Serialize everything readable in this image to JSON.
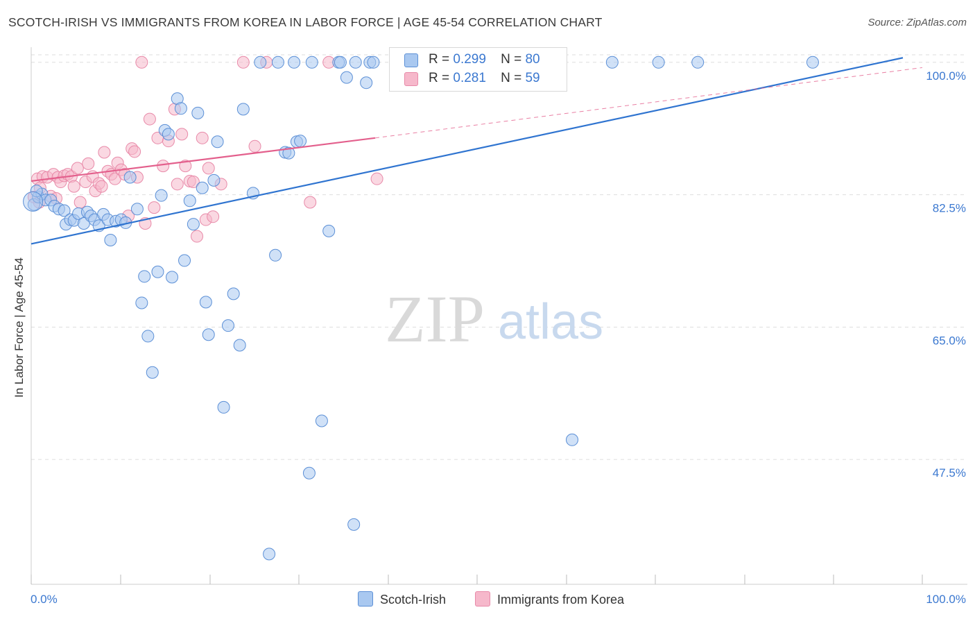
{
  "title": "SCOTCH-IRISH VS IMMIGRANTS FROM KOREA IN LABOR FORCE | AGE 45-54 CORRELATION CHART",
  "source": "Source: ZipAtlas.com",
  "watermark": {
    "zip": "ZIP",
    "atlas": "atlas"
  },
  "colors": {
    "blue_fill": "#a9c8f0",
    "blue_stroke": "#5b8fd6",
    "blue_line": "#2f74d0",
    "pink_fill": "#f6b8cb",
    "pink_stroke": "#e889a8",
    "pink_line": "#e35f8c",
    "axis_label": "#3b78d0",
    "grid": "#dddddd"
  },
  "legend_top": [
    {
      "r_label": "R =",
      "r_value": "0.299",
      "n_label": "N =",
      "n_value": "80"
    },
    {
      "r_label": "R =",
      "r_value": "0.281",
      "n_label": "N =",
      "n_value": "59"
    }
  ],
  "chart_data": {
    "type": "scatter",
    "title": "SCOTCH-IRISH VS IMMIGRANTS FROM KOREA IN LABOR FORCE | AGE 45-54 CORRELATION CHART",
    "xlabel": "",
    "ylabel": "In Labor Force | Age 45-54",
    "xlim": [
      0,
      100
    ],
    "ylim": [
      31,
      102
    ],
    "x_tick_labels": [
      "0.0%",
      "100.0%"
    ],
    "y_ticks": [
      {
        "value": 100.0,
        "label": "100.0%"
      },
      {
        "value": 82.5,
        "label": "82.5%"
      },
      {
        "value": 65.0,
        "label": "65.0%"
      },
      {
        "value": 47.5,
        "label": "47.5%"
      }
    ],
    "series": [
      {
        "name": "Scotch-Irish",
        "color": "blue",
        "r": 0.299,
        "n": 80,
        "trend": {
          "x0": 0,
          "y0": 76.0,
          "x1": 100,
          "y1": 100.6
        },
        "points": [
          [
            0.3,
            81.2
          ],
          [
            0.8,
            82.2
          ],
          [
            1.2,
            82.6
          ],
          [
            1.6,
            81.8
          ],
          [
            2.2,
            81.8
          ],
          [
            2.6,
            81.0
          ],
          [
            3.1,
            80.6
          ],
          [
            3.7,
            80.4
          ],
          [
            3.9,
            78.6
          ],
          [
            4.4,
            79.2
          ],
          [
            4.8,
            79.1
          ],
          [
            5.3,
            80.0
          ],
          [
            5.9,
            78.7
          ],
          [
            6.3,
            80.2
          ],
          [
            6.7,
            79.7
          ],
          [
            7.1,
            79.2
          ],
          [
            7.6,
            78.4
          ],
          [
            8.1,
            79.9
          ],
          [
            8.6,
            79.2
          ],
          [
            8.9,
            76.5
          ],
          [
            9.5,
            79.0
          ],
          [
            10.1,
            79.2
          ],
          [
            10.6,
            78.8
          ],
          [
            11.1,
            84.8
          ],
          [
            11.9,
            80.6
          ],
          [
            12.4,
            68.2
          ],
          [
            12.7,
            71.7
          ],
          [
            13.1,
            63.8
          ],
          [
            13.6,
            59.0
          ],
          [
            14.2,
            72.3
          ],
          [
            14.6,
            82.4
          ],
          [
            15.0,
            91.0
          ],
          [
            15.4,
            90.5
          ],
          [
            15.8,
            71.6
          ],
          [
            16.4,
            95.2
          ],
          [
            16.8,
            93.9
          ],
          [
            17.2,
            73.8
          ],
          [
            17.8,
            81.7
          ],
          [
            18.2,
            78.6
          ],
          [
            18.7,
            93.3
          ],
          [
            19.2,
            83.4
          ],
          [
            19.6,
            68.3
          ],
          [
            19.9,
            64.0
          ],
          [
            20.5,
            84.4
          ],
          [
            20.9,
            89.5
          ],
          [
            21.6,
            54.4
          ],
          [
            22.1,
            65.2
          ],
          [
            22.7,
            69.4
          ],
          [
            23.4,
            62.6
          ],
          [
            23.8,
            93.8
          ],
          [
            24.9,
            82.7
          ],
          [
            25.7,
            100.0
          ],
          [
            26.7,
            35.0
          ],
          [
            27.4,
            74.5
          ],
          [
            27.7,
            100.0
          ],
          [
            28.5,
            88.1
          ],
          [
            28.9,
            88.0
          ],
          [
            29.5,
            100.0
          ],
          [
            29.8,
            89.5
          ],
          [
            30.2,
            89.6
          ],
          [
            31.2,
            45.7
          ],
          [
            31.5,
            100.0
          ],
          [
            32.6,
            52.6
          ],
          [
            33.4,
            77.7
          ],
          [
            34.5,
            100.0
          ],
          [
            34.7,
            100.0
          ],
          [
            35.4,
            98.0
          ],
          [
            36.2,
            38.9
          ],
          [
            36.4,
            100.0
          ],
          [
            37.6,
            97.3
          ],
          [
            38.0,
            100.0
          ],
          [
            38.4,
            100.0
          ],
          [
            42.5,
            100.0
          ],
          [
            49.4,
            100.0
          ],
          [
            60.7,
            50.1
          ],
          [
            65.2,
            100.0
          ],
          [
            70.4,
            100.0
          ],
          [
            74.8,
            100.0
          ],
          [
            87.7,
            100.0
          ],
          [
            0.6,
            83.0
          ]
        ]
      },
      {
        "name": "Immigrants from Korea",
        "color": "pink",
        "r": 0.281,
        "n": 59,
        "trend": {
          "x0": 0,
          "y0": 84.3,
          "x1": 38.6,
          "y1": 90.0
        },
        "trend_dash": {
          "x0": 38.6,
          "y0": 90.0,
          "x1": 100,
          "y1": 99.3
        },
        "points": [
          [
            0.3,
            82.2
          ],
          [
            0.7,
            84.6
          ],
          [
            1.0,
            83.4
          ],
          [
            1.3,
            84.9
          ],
          [
            1.8,
            84.8
          ],
          [
            2.2,
            82.3
          ],
          [
            2.5,
            85.2
          ],
          [
            3.0,
            84.8
          ],
          [
            3.3,
            84.2
          ],
          [
            3.7,
            85.0
          ],
          [
            4.1,
            85.2
          ],
          [
            4.5,
            84.9
          ],
          [
            4.8,
            83.6
          ],
          [
            5.2,
            86.0
          ],
          [
            5.5,
            81.5
          ],
          [
            6.1,
            84.2
          ],
          [
            6.4,
            86.6
          ],
          [
            6.9,
            84.9
          ],
          [
            7.2,
            83.0
          ],
          [
            7.6,
            84.0
          ],
          [
            7.9,
            83.6
          ],
          [
            8.2,
            88.1
          ],
          [
            8.6,
            85.6
          ],
          [
            9.0,
            85.2
          ],
          [
            9.4,
            84.6
          ],
          [
            9.7,
            86.7
          ],
          [
            10.1,
            85.8
          ],
          [
            10.5,
            85.2
          ],
          [
            10.9,
            79.7
          ],
          [
            11.3,
            88.6
          ],
          [
            11.6,
            88.2
          ],
          [
            11.9,
            84.8
          ],
          [
            12.4,
            100.0
          ],
          [
            12.8,
            78.7
          ],
          [
            13.3,
            92.5
          ],
          [
            13.8,
            80.8
          ],
          [
            14.2,
            90.0
          ],
          [
            14.8,
            86.3
          ],
          [
            15.4,
            89.6
          ],
          [
            16.1,
            93.8
          ],
          [
            16.4,
            83.9
          ],
          [
            16.9,
            90.5
          ],
          [
            17.3,
            86.3
          ],
          [
            17.8,
            84.3
          ],
          [
            18.2,
            84.2
          ],
          [
            18.6,
            77.0
          ],
          [
            19.2,
            90.0
          ],
          [
            19.6,
            79.2
          ],
          [
            19.9,
            86.0
          ],
          [
            20.4,
            79.6
          ],
          [
            21.3,
            83.9
          ],
          [
            23.8,
            100.0
          ],
          [
            25.1,
            88.9
          ],
          [
            26.4,
            100.0
          ],
          [
            31.3,
            81.5
          ],
          [
            33.4,
            100.0
          ],
          [
            38.8,
            84.6
          ],
          [
            0.9,
            81.5
          ],
          [
            2.8,
            82.0
          ]
        ]
      }
    ]
  },
  "bottom_legend": [
    {
      "label": "Scotch-Irish"
    },
    {
      "label": "Immigrants from Korea"
    }
  ]
}
